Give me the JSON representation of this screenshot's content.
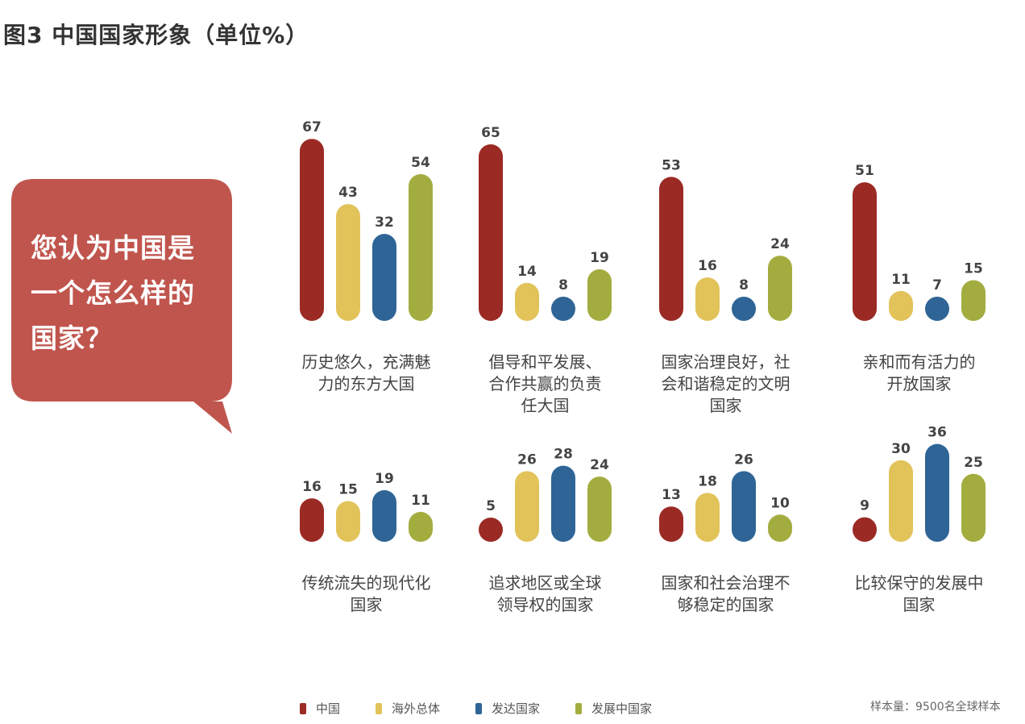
{
  "title": "图3 中国国家形象（单位%）",
  "bubble_lines": [
    "您认为中国是",
    "一个怎么样的",
    "国家？"
  ],
  "colors": {
    "bubble": "#c0554d",
    "series": [
      "#9b2a24",
      "#e2c35a",
      "#2f6596",
      "#a3ad3f"
    ]
  },
  "chart_data": {
    "type": "bar",
    "series_names": [
      "中国",
      "海外总体",
      "发达国家",
      "发展中国家"
    ],
    "categories": [
      {
        "label": [
          "历史悠久，充满魅",
          "力的东方大国"
        ],
        "values": [
          67,
          43,
          32,
          54
        ]
      },
      {
        "label": [
          "倡导和平发展、",
          "合作共赢的负责",
          "任大国"
        ],
        "values": [
          65,
          14,
          8,
          19
        ]
      },
      {
        "label": [
          "国家治理良好，社",
          "会和谐稳定的文明",
          "国家"
        ],
        "values": [
          53,
          16,
          8,
          24
        ]
      },
      {
        "label": [
          "亲和而有活力的",
          "开放国家"
        ],
        "values": [
          51,
          11,
          7,
          15
        ]
      },
      {
        "label": [
          "传统流失的现代化",
          "国家"
        ],
        "values": [
          16,
          15,
          19,
          11
        ]
      },
      {
        "label": [
          "追求地区或全球",
          "领导权的国家"
        ],
        "values": [
          5,
          26,
          28,
          24
        ]
      },
      {
        "label": [
          "国家和社会治理不",
          "够稳定的国家"
        ],
        "values": [
          13,
          18,
          26,
          10
        ]
      },
      {
        "label": [
          "比较保守的发展中",
          "国家"
        ],
        "values": [
          9,
          30,
          36,
          25
        ]
      }
    ]
  },
  "sample_note": "样本量：9500名全球样本"
}
